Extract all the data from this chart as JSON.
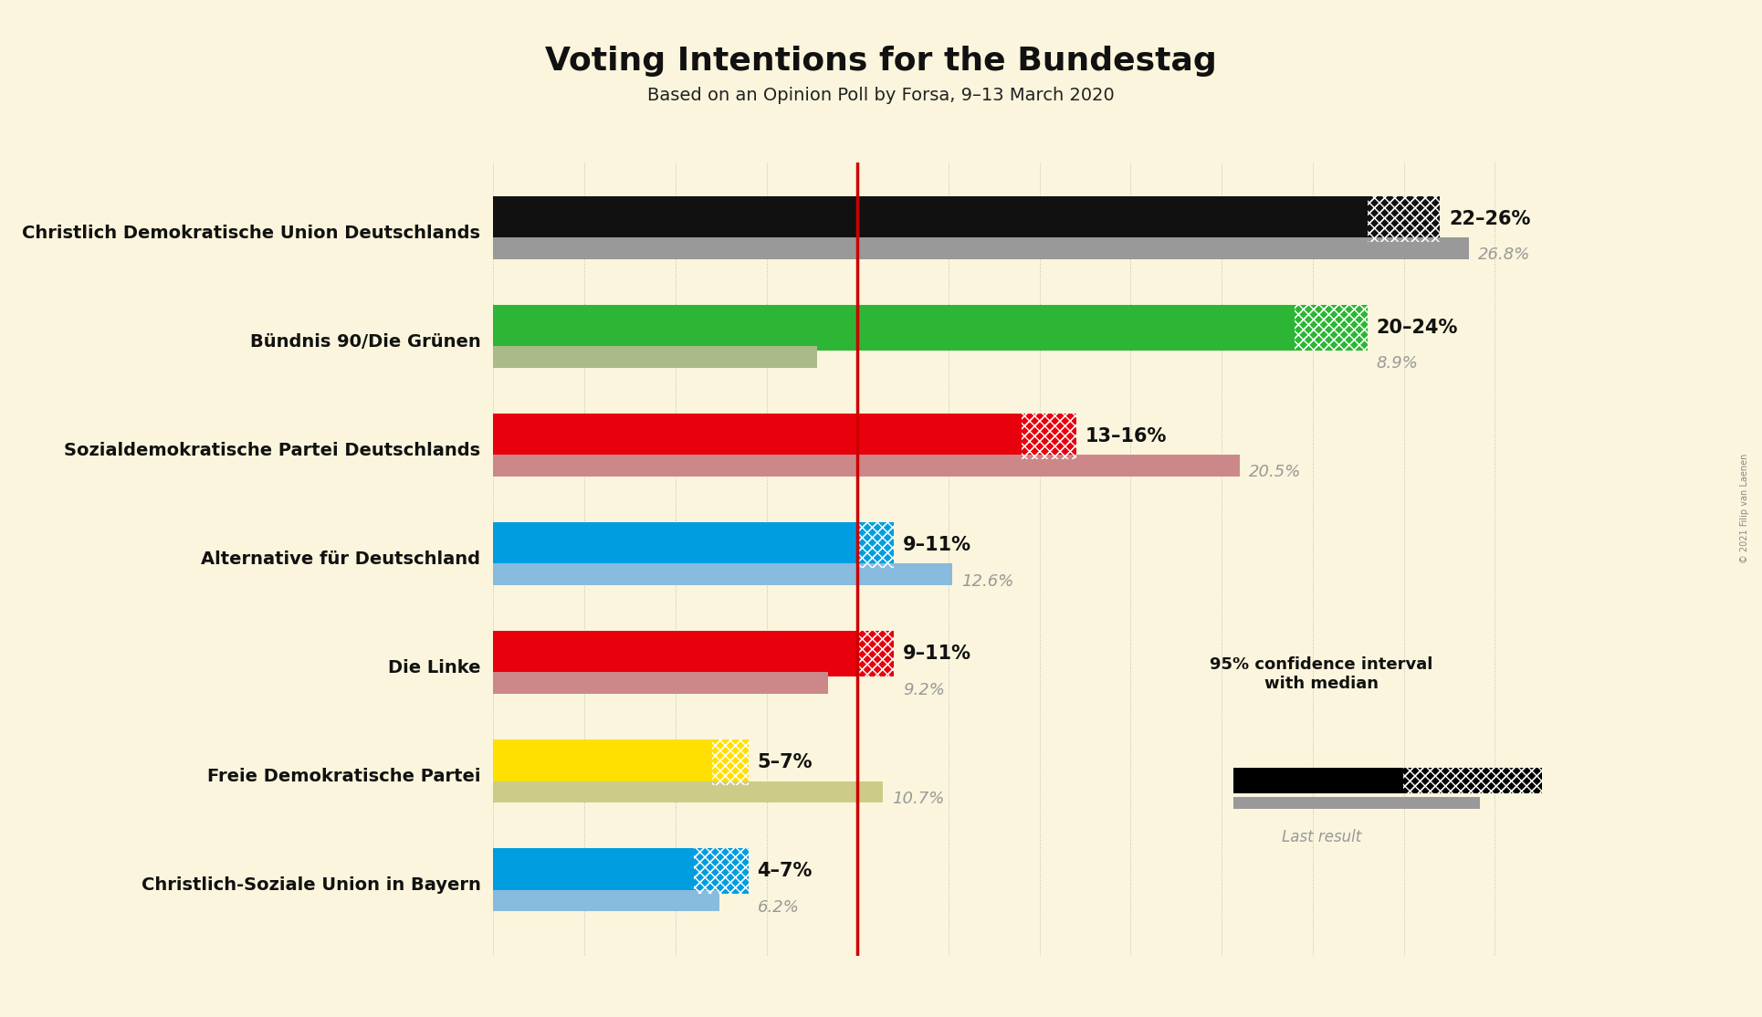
{
  "title": "Voting Intentions for the Bundestag",
  "subtitle": "Based on an Opinion Poll by Forsa, 9–13 March 2020",
  "background_color": "#FAF5DC",
  "parties": [
    {
      "name": "Christlich Demokratische Union Deutschlands",
      "ci_low": 22,
      "ci_high": 26,
      "median": 24,
      "last_result": 26.8,
      "color": "#111111",
      "last_color": "#999999",
      "label": "22–26%",
      "last_label": "26.8%"
    },
    {
      "name": "Bündnis 90/Die Grünen",
      "ci_low": 20,
      "ci_high": 24,
      "median": 22,
      "last_result": 8.9,
      "color": "#2DB535",
      "last_color": "#AABB88",
      "label": "20–24%",
      "last_label": "8.9%"
    },
    {
      "name": "Sozialdemokratische Partei Deutschlands",
      "ci_low": 13,
      "ci_high": 16,
      "median": 14.5,
      "last_result": 20.5,
      "color": "#E8000D",
      "last_color": "#CC8888",
      "label": "13–16%",
      "last_label": "20.5%"
    },
    {
      "name": "Alternative für Deutschland",
      "ci_low": 9,
      "ci_high": 11,
      "median": 10,
      "last_result": 12.6,
      "color": "#009EE0",
      "last_color": "#88BBDD",
      "label": "9–11%",
      "last_label": "12.6%"
    },
    {
      "name": "Die Linke",
      "ci_low": 9,
      "ci_high": 11,
      "median": 10,
      "last_result": 9.2,
      "color": "#E8000D",
      "last_color": "#CC8888",
      "label": "9–11%",
      "last_label": "9.2%"
    },
    {
      "name": "Freie Demokratische Partei",
      "ci_low": 5,
      "ci_high": 7,
      "median": 6,
      "last_result": 10.7,
      "color": "#FFE000",
      "last_color": "#CCCC88",
      "label": "5–7%",
      "last_label": "10.7%"
    },
    {
      "name": "Christlich-Soziale Union in Bayern",
      "ci_low": 4,
      "ci_high": 7,
      "median": 5.5,
      "last_result": 6.2,
      "color": "#009EE0",
      "last_color": "#88BBDD",
      "label": "4–7%",
      "last_label": "6.2%"
    }
  ],
  "median_line_color": "#CC0000",
  "median_line_x": 10,
  "xlim": [
    0,
    30
  ],
  "bar_height": 0.42,
  "last_bar_height": 0.2,
  "gray_color": "#AAAAAA",
  "last_result_text_color": "#999999",
  "label_color": "#111111",
  "watermark": "© 2021 Filip van Laenen"
}
